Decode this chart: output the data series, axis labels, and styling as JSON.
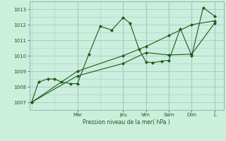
{
  "background_color": "#cceedd",
  "grid_color": "#aacccc",
  "line_color": "#1a5c1a",
  "marker_color": "#1a5c1a",
  "xlabel": "Pression niveau de la mer( hPa )",
  "ylim": [
    1006.5,
    1013.5
  ],
  "yticks": [
    1007,
    1008,
    1009,
    1010,
    1011,
    1012,
    1013
  ],
  "x_day_labels": [
    "Mar",
    "Jeu",
    "Ven",
    "Sam",
    "Dim",
    "L"
  ],
  "x_day_positions": [
    2.0,
    4.0,
    5.0,
    6.0,
    7.0,
    8.0
  ],
  "xlim": [
    -0.1,
    8.4
  ],
  "series1_x": [
    0.0,
    0.3,
    0.7,
    1.0,
    1.3,
    1.7,
    2.0,
    2.5,
    3.0,
    3.5,
    4.0,
    4.3,
    4.7,
    5.0,
    5.3,
    5.7,
    6.0,
    6.5,
    7.0,
    7.5,
    8.0
  ],
  "series1_y": [
    1007.0,
    1008.3,
    1008.5,
    1008.5,
    1008.3,
    1008.2,
    1008.2,
    1010.1,
    1011.9,
    1011.65,
    1012.45,
    1012.1,
    1010.4,
    1009.6,
    1009.55,
    1009.65,
    1009.7,
    1011.75,
    1010.0,
    1013.1,
    1012.55
  ],
  "series2_x": [
    0.0,
    2.0,
    4.0,
    5.0,
    6.0,
    7.0,
    8.0
  ],
  "series2_y": [
    1007.0,
    1008.7,
    1009.5,
    1010.2,
    1010.05,
    1010.1,
    1012.1
  ],
  "series3_x": [
    0.0,
    2.0,
    4.0,
    5.0,
    6.0,
    7.0,
    8.0
  ],
  "series3_y": [
    1007.0,
    1009.0,
    1010.0,
    1010.6,
    1011.3,
    1012.0,
    1012.25
  ]
}
